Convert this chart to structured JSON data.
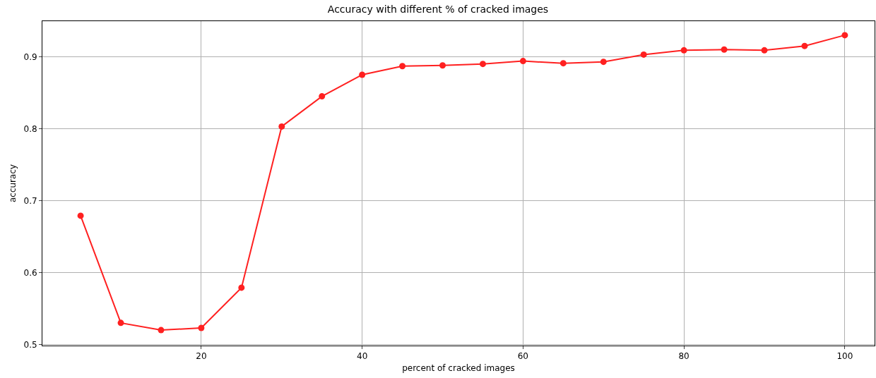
{
  "chart_data": {
    "type": "line",
    "title": "Accuracy with different % of cracked images",
    "xlabel": "percent of cracked images",
    "ylabel": "accuracy",
    "x": [
      5,
      10,
      15,
      20,
      25,
      30,
      35,
      40,
      45,
      50,
      55,
      60,
      65,
      70,
      75,
      80,
      85,
      90,
      95,
      100
    ],
    "series": [
      {
        "color": "#ff2020",
        "values": [
          0.679,
          0.53,
          0.52,
          0.523,
          0.579,
          0.803,
          0.845,
          0.875,
          0.887,
          0.888,
          0.89,
          0.894,
          0.891,
          0.893,
          0.903,
          0.909,
          0.91,
          0.909,
          0.915,
          0.93
        ]
      }
    ],
    "xlim": [
      0.25,
      103.7
    ],
    "ylim": [
      0.4985,
      0.9495
    ],
    "xticks": [
      20,
      40,
      60,
      80,
      100
    ],
    "yticks": [
      0.5,
      0.6,
      0.7,
      0.8,
      0.9
    ],
    "grid": true,
    "marker": "circle",
    "line_style": "solid"
  }
}
